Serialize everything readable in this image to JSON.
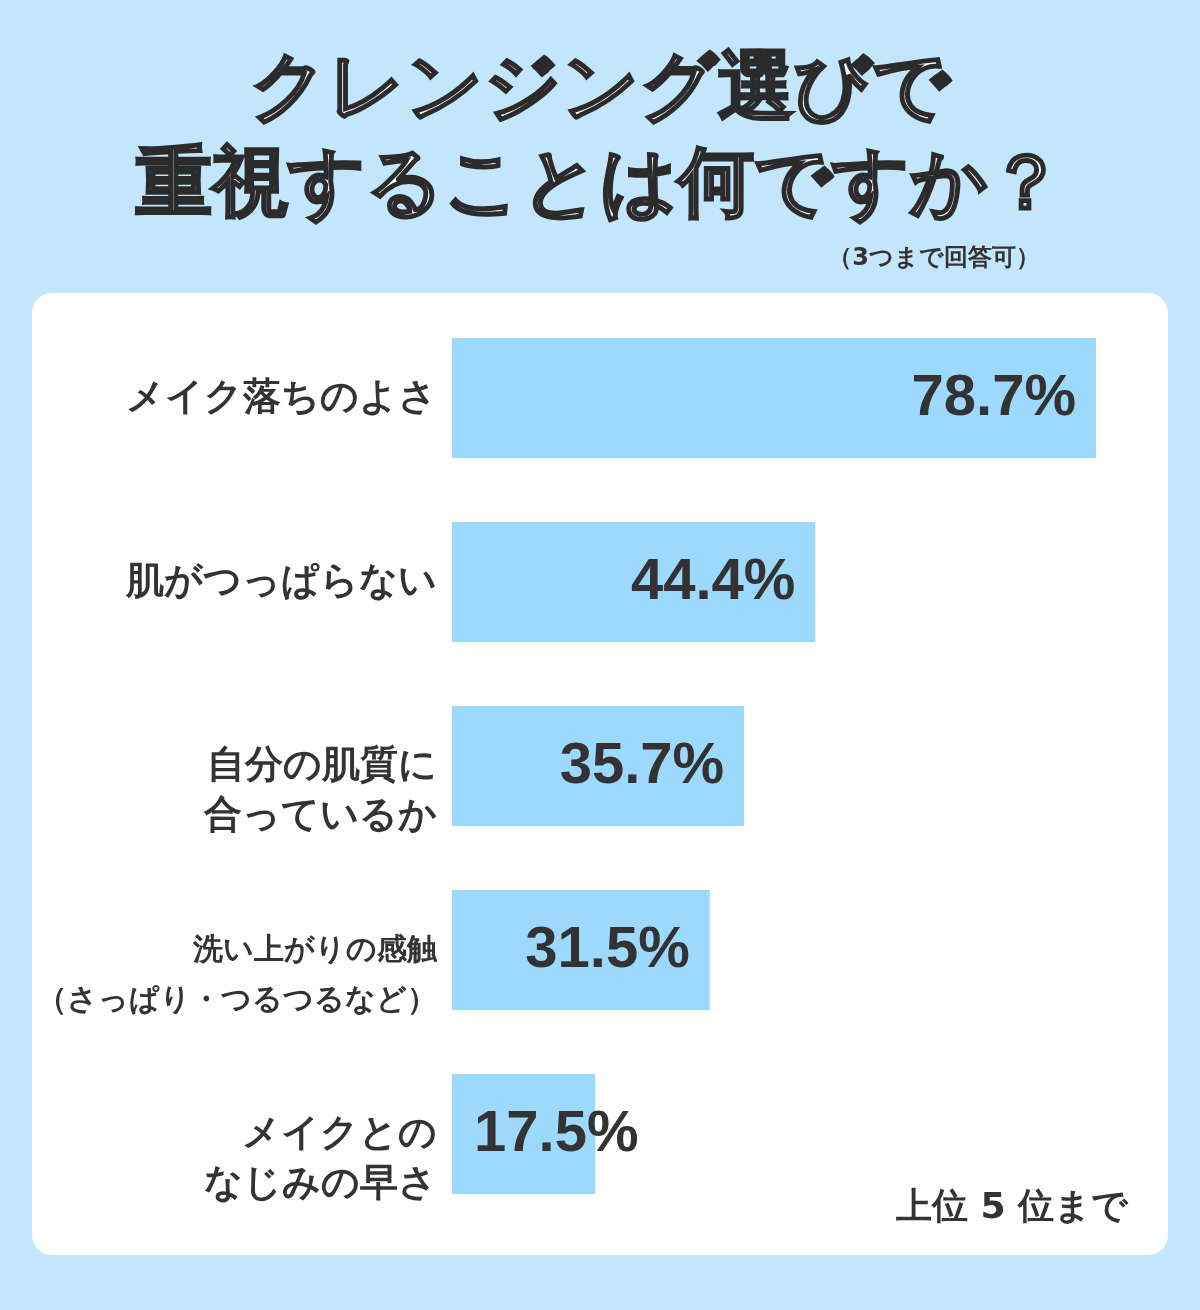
{
  "chart_data": {
    "type": "bar",
    "orientation": "horizontal",
    "title": "クレンジング選びで重視することは何ですか？",
    "subtitle": "（3つまで回答可）",
    "categories": [
      "メイク落ちのよさ",
      "肌がつっぱらない",
      "自分の肌質に合っているか",
      "洗い上がりの感触（さっぱり・つるつるなど）",
      "メイクとのなじみの早さ"
    ],
    "values": [
      78.7,
      44.4,
      35.7,
      31.5,
      17.5
    ],
    "value_labels": [
      "78.7%",
      "44.4%",
      "35.7%",
      "31.5%",
      "17.5%"
    ],
    "color": "#9cd9fd",
    "annotations": [
      "上位 5 位まで"
    ]
  }
}
